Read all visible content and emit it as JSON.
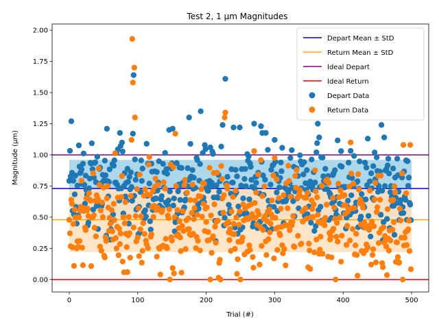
{
  "chart_data": {
    "type": "scatter",
    "title": "Test 2, 1 μm Magnitudes",
    "xlabel": "Trial (#)",
    "ylabel": "Magnitude (μm)",
    "xlim": [
      -25,
      525
    ],
    "ylim": [
      -0.1,
      2.05
    ],
    "x_ticks": [
      0,
      100,
      200,
      300,
      400,
      500
    ],
    "x_tick_labels": [
      "0",
      "100",
      "200",
      "300",
      "400",
      "500"
    ],
    "y_ticks": [
      0.0,
      0.25,
      0.5,
      0.75,
      1.0,
      1.25,
      1.5,
      1.75,
      2.0
    ],
    "y_tick_labels": [
      "0.00",
      "0.25",
      "0.50",
      "0.75",
      "1.00",
      "1.25",
      "1.50",
      "1.75",
      "2.00"
    ],
    "grid": false,
    "legend_position": "top-right",
    "legend": [
      {
        "label": "Depart Mean ± StD",
        "kind": "line",
        "color": "#0000cc"
      },
      {
        "label": "Return Mean ± StD",
        "kind": "line",
        "color": "#ffa500"
      },
      {
        "label": "Ideal Depart",
        "kind": "line",
        "color": "#800080"
      },
      {
        "label": "Ideal Return",
        "kind": "line",
        "color": "#ee0000"
      },
      {
        "label": "Depart Data",
        "kind": "marker",
        "color": "#1f77b4"
      },
      {
        "label": "Return Data",
        "kind": "marker",
        "color": "#ff7f0e"
      }
    ],
    "bands": [
      {
        "name": "Depart Mean ± StD",
        "mean": 0.73,
        "lower": 0.5,
        "upper": 0.96,
        "x_range": [
          0,
          500
        ],
        "line_color": "#0000cc",
        "fill_color": "#9fd0e6"
      },
      {
        "name": "Return Mean ± StD",
        "mean": 0.48,
        "lower": 0.22,
        "upper": 0.73,
        "x_range": [
          0,
          500
        ],
        "line_color": "#ffa500",
        "fill_color": "#ffe0bd"
      }
    ],
    "reference_lines": [
      {
        "name": "Ideal Depart",
        "y": 1.0,
        "color": "#800080"
      },
      {
        "name": "Ideal Return",
        "y": 0.0,
        "color": "#ee0000"
      }
    ],
    "series": [
      {
        "name": "Depart Data",
        "color": "#1f77b4",
        "n_points": 500,
        "value_range": [
          0.28,
          1.64
        ],
        "highlighted_points": [
          {
            "x": 3,
            "y": 1.27
          },
          {
            "x": 55,
            "y": 1.21
          },
          {
            "x": 94,
            "y": 1.64
          },
          {
            "x": 93,
            "y": 1.17
          },
          {
            "x": 146,
            "y": 1.2
          },
          {
            "x": 151,
            "y": 1.21
          },
          {
            "x": 175,
            "y": 1.3
          },
          {
            "x": 192,
            "y": 1.35
          },
          {
            "x": 228,
            "y": 1.61
          },
          {
            "x": 224,
            "y": 1.24
          },
          {
            "x": 240,
            "y": 1.22
          },
          {
            "x": 249,
            "y": 1.22
          },
          {
            "x": 270,
            "y": 1.25
          },
          {
            "x": 280,
            "y": 1.23
          },
          {
            "x": 363,
            "y": 1.25
          },
          {
            "x": 365,
            "y": 1.14
          },
          {
            "x": 456,
            "y": 1.24
          },
          {
            "x": 460,
            "y": 1.14
          },
          {
            "x": 206,
            "y": 1.06
          },
          {
            "x": 300,
            "y": 1.12
          }
        ]
      },
      {
        "name": "Return Data",
        "color": "#ff7f0e",
        "n_points": 500,
        "value_range": [
          0.0,
          1.93
        ],
        "highlighted_points": [
          {
            "x": 92,
            "y": 1.93
          },
          {
            "x": 95,
            "y": 1.7
          },
          {
            "x": 93,
            "y": 1.58
          },
          {
            "x": 96,
            "y": 1.3
          },
          {
            "x": 91,
            "y": 1.12
          },
          {
            "x": 155,
            "y": 1.17
          },
          {
            "x": 228,
            "y": 1.34
          },
          {
            "x": 227,
            "y": 1.3
          },
          {
            "x": 206,
            "y": 0.0
          },
          {
            "x": 221,
            "y": 0.0
          },
          {
            "x": 389,
            "y": 0.0
          },
          {
            "x": 487,
            "y": 0.0
          },
          {
            "x": 411,
            "y": 1.1
          },
          {
            "x": 488,
            "y": 1.08
          },
          {
            "x": 498,
            "y": 1.08
          },
          {
            "x": 270,
            "y": 1.03
          }
        ]
      }
    ]
  }
}
